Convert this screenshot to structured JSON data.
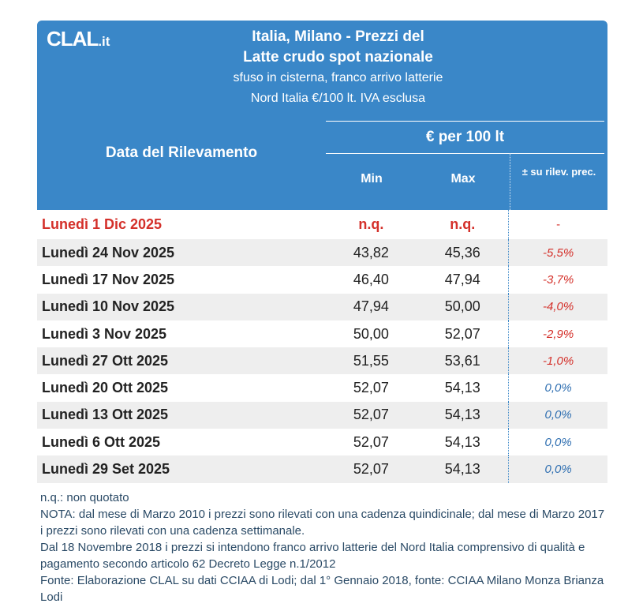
{
  "logo": {
    "main": "CLAL",
    "suffix": ".it"
  },
  "title": {
    "line1": "Italia, Milano - Prezzi del",
    "line2": "Latte crudo spot nazionale",
    "line3": "sfuso in cisterna, franco arrivo latterie",
    "line4": "Nord Italia €/100 lt. IVA esclusa"
  },
  "columns": {
    "date_header": "Data del Rilevamento",
    "price_group": "€ per 100 lt",
    "min": "Min",
    "max": "Max",
    "variation": "± su rilev. prec."
  },
  "rows": [
    {
      "date": "Lunedì 1 Dic 2025",
      "min": "n.q.",
      "max": "n.q.",
      "var": "-",
      "current": true
    },
    {
      "date": "Lunedì 24 Nov 2025",
      "min": "43,82",
      "max": "45,36",
      "var": "-5,5%"
    },
    {
      "date": "Lunedì 17 Nov 2025",
      "min": "46,40",
      "max": "47,94",
      "var": "-3,7%"
    },
    {
      "date": "Lunedì 10 Nov 2025",
      "min": "47,94",
      "max": "50,00",
      "var": "-4,0%"
    },
    {
      "date": "Lunedì 3 Nov 2025",
      "min": "50,00",
      "max": "52,07",
      "var": "-2,9%"
    },
    {
      "date": "Lunedì 27 Ott 2025",
      "min": "51,55",
      "max": "53,61",
      "var": "-1,0%"
    },
    {
      "date": "Lunedì 20 Ott 2025",
      "min": "52,07",
      "max": "54,13",
      "var": "0,0%"
    },
    {
      "date": "Lunedì 13 Ott 2025",
      "min": "52,07",
      "max": "54,13",
      "var": "0,0%"
    },
    {
      "date": "Lunedì 6 Ott 2025",
      "min": "52,07",
      "max": "54,13",
      "var": "0,0%"
    },
    {
      "date": "Lunedì 29 Set 2025",
      "min": "52,07",
      "max": "54,13",
      "var": "0,0%"
    }
  ],
  "notes": {
    "nq": "n.q.: non quotato",
    "nota": "NOTA: dal mese di Marzo 2010 i prezzi sono rilevati con una cadenza quindicinale; dal mese di Marzo 2017 i prezzi sono rilevati con una cadenza settimanale.",
    "franco": "Dal 18 Novembre 2018 i prezzi si intendono franco arrivo latterie del Nord Italia comprensivo di qualità e pagamento secondo articolo 62 Decreto Legge n.1/2012",
    "fonte": "Fonte: Elaborazione CLAL su dati CCIAA di Lodi; dal 1° Gennaio 2018, fonte: CCIAA Milano Monza Brianza Lodi"
  },
  "colors": {
    "header_bg": "#3a87c8",
    "negative": "#d4302a",
    "zero": "#2f6fb1",
    "row_shade": "#eeeeee"
  }
}
